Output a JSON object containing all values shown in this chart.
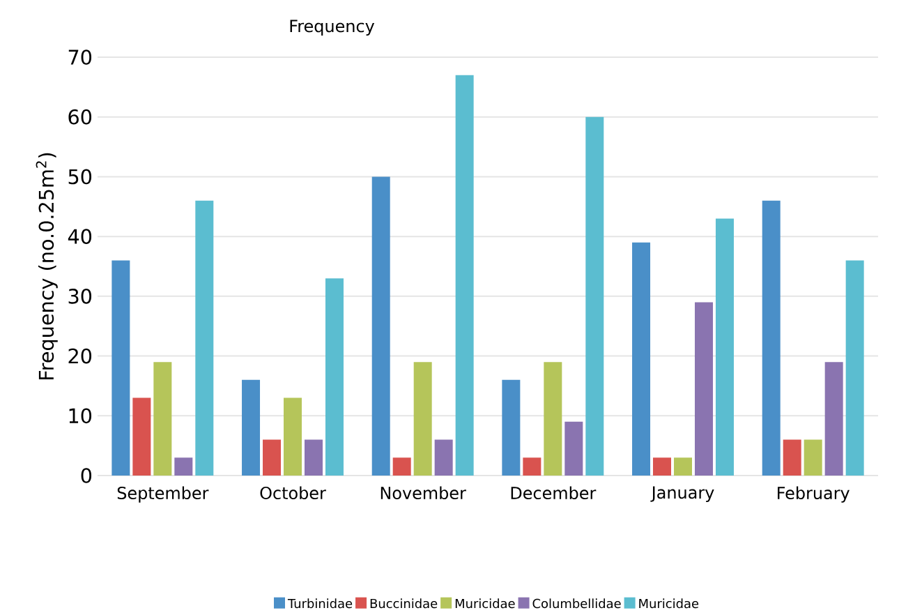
{
  "chart_data": {
    "type": "bar",
    "title": "Frequency",
    "ylabel": "Frequency (no.0.25m$^{2}$)",
    "categories": [
      "September",
      "October",
      "November",
      "December",
      "January",
      "February"
    ],
    "series": [
      {
        "name": "Turbinidae",
        "color": "#4a8fc8",
        "values": [
          36,
          16,
          50,
          16,
          39,
          46
        ]
      },
      {
        "name": "Buccinidae",
        "color": "#d9534f",
        "values": [
          13,
          6,
          3,
          3,
          3,
          6
        ]
      },
      {
        "name": "Muricidae",
        "color": "#b5c55a",
        "values": [
          19,
          13,
          19,
          19,
          3,
          6
        ]
      },
      {
        "name": "Columbellidae",
        "color": "#8a74b0",
        "values": [
          3,
          6,
          6,
          9,
          29,
          19
        ]
      },
      {
        "name": "Muricidae",
        "color": "#5bbdd0",
        "values": [
          46,
          33,
          67,
          60,
          43,
          36
        ]
      }
    ],
    "ylim": [
      0,
      70
    ],
    "yticks": [
      0,
      10,
      20,
      30,
      40,
      50,
      60,
      70
    ],
    "grid": "y",
    "legend": "bottom"
  }
}
